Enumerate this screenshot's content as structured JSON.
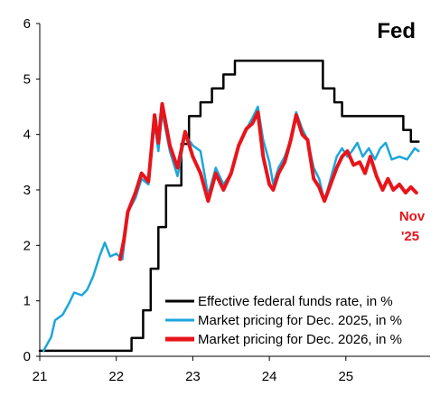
{
  "chart_data": {
    "type": "line",
    "title": "Fed",
    "xlabel": "",
    "ylabel": "",
    "xlim": [
      21.0,
      26.1
    ],
    "ylim": [
      0,
      6
    ],
    "x_ticks": [
      {
        "value": 21,
        "label": "21"
      },
      {
        "value": 22,
        "label": "22"
      },
      {
        "value": 23,
        "label": "23"
      },
      {
        "value": 24,
        "label": "24"
      },
      {
        "value": 25,
        "label": "25"
      }
    ],
    "y_ticks": [
      0,
      1,
      2,
      3,
      4,
      5,
      6
    ],
    "grid": false,
    "legend_position": "bottom-right",
    "annotation": {
      "text_line1": "Nov",
      "text_line2": "'25",
      "color": "#e8141b"
    },
    "series": [
      {
        "name": "Effective federal funds rate, in %",
        "color": "#000000",
        "step": true,
        "points": [
          [
            21.0,
            0.1
          ],
          [
            22.2,
            0.1
          ],
          [
            22.2,
            0.33
          ],
          [
            22.35,
            0.33
          ],
          [
            22.35,
            0.83
          ],
          [
            22.45,
            0.83
          ],
          [
            22.45,
            1.58
          ],
          [
            22.55,
            1.58
          ],
          [
            22.55,
            2.33
          ],
          [
            22.65,
            2.33
          ],
          [
            22.65,
            3.08
          ],
          [
            22.85,
            3.08
          ],
          [
            22.85,
            3.83
          ],
          [
            22.95,
            3.83
          ],
          [
            22.95,
            4.33
          ],
          [
            23.1,
            4.33
          ],
          [
            23.1,
            4.58
          ],
          [
            23.25,
            4.58
          ],
          [
            23.25,
            4.83
          ],
          [
            23.4,
            4.83
          ],
          [
            23.4,
            5.08
          ],
          [
            23.55,
            5.08
          ],
          [
            23.55,
            5.33
          ],
          [
            24.7,
            5.33
          ],
          [
            24.7,
            4.83
          ],
          [
            24.85,
            4.83
          ],
          [
            24.85,
            4.58
          ],
          [
            24.95,
            4.58
          ],
          [
            24.95,
            4.33
          ],
          [
            25.75,
            4.33
          ],
          [
            25.75,
            4.08
          ],
          [
            25.85,
            4.08
          ],
          [
            25.85,
            3.87
          ],
          [
            25.95,
            3.87
          ]
        ]
      },
      {
        "name": "Market pricing for Dec. 2025, in %",
        "color": "#1ca6dc",
        "points": [
          [
            21.05,
            0.1
          ],
          [
            21.15,
            0.35
          ],
          [
            21.2,
            0.65
          ],
          [
            21.3,
            0.75
          ],
          [
            21.38,
            0.95
          ],
          [
            21.45,
            1.15
          ],
          [
            21.55,
            1.1
          ],
          [
            21.62,
            1.2
          ],
          [
            21.7,
            1.45
          ],
          [
            21.78,
            1.8
          ],
          [
            21.85,
            2.05
          ],
          [
            21.92,
            1.8
          ],
          [
            22.0,
            1.85
          ],
          [
            22.08,
            1.75
          ],
          [
            22.15,
            2.6
          ],
          [
            22.25,
            2.85
          ],
          [
            22.33,
            3.2
          ],
          [
            22.42,
            3.1
          ],
          [
            22.5,
            4.2
          ],
          [
            22.55,
            3.7
          ],
          [
            22.6,
            4.4
          ],
          [
            22.7,
            3.7
          ],
          [
            22.8,
            3.25
          ],
          [
            22.9,
            4.0
          ],
          [
            23.0,
            3.8
          ],
          [
            23.1,
            3.7
          ],
          [
            23.2,
            2.9
          ],
          [
            23.3,
            3.4
          ],
          [
            23.4,
            3.1
          ],
          [
            23.5,
            3.3
          ],
          [
            23.6,
            3.8
          ],
          [
            23.7,
            4.1
          ],
          [
            23.78,
            4.3
          ],
          [
            23.85,
            4.5
          ],
          [
            23.92,
            3.9
          ],
          [
            24.0,
            3.5
          ],
          [
            24.05,
            3.1
          ],
          [
            24.12,
            3.4
          ],
          [
            24.2,
            3.6
          ],
          [
            24.28,
            3.9
          ],
          [
            24.35,
            4.4
          ],
          [
            24.43,
            4.1
          ],
          [
            24.5,
            3.9
          ],
          [
            24.58,
            3.4
          ],
          [
            24.65,
            3.2
          ],
          [
            24.72,
            2.8
          ],
          [
            24.8,
            3.2
          ],
          [
            24.88,
            3.6
          ],
          [
            24.95,
            3.75
          ],
          [
            25.02,
            3.6
          ],
          [
            25.08,
            3.7
          ],
          [
            25.15,
            3.85
          ],
          [
            25.22,
            3.6
          ],
          [
            25.3,
            3.75
          ],
          [
            25.38,
            3.55
          ],
          [
            25.45,
            3.75
          ],
          [
            25.52,
            3.85
          ],
          [
            25.6,
            3.55
          ],
          [
            25.7,
            3.6
          ],
          [
            25.8,
            3.55
          ],
          [
            25.9,
            3.75
          ],
          [
            25.95,
            3.7
          ]
        ]
      },
      {
        "name": "Market pricing for Dec. 2026, in %",
        "color": "#e8141b",
        "points": [
          [
            22.05,
            1.75
          ],
          [
            22.1,
            2.1
          ],
          [
            22.15,
            2.6
          ],
          [
            22.25,
            2.95
          ],
          [
            22.33,
            3.3
          ],
          [
            22.42,
            3.15
          ],
          [
            22.5,
            4.35
          ],
          [
            22.55,
            3.85
          ],
          [
            22.6,
            4.55
          ],
          [
            22.7,
            3.8
          ],
          [
            22.8,
            3.4
          ],
          [
            22.9,
            4.05
          ],
          [
            23.0,
            3.6
          ],
          [
            23.1,
            3.3
          ],
          [
            23.2,
            2.8
          ],
          [
            23.3,
            3.3
          ],
          [
            23.4,
            3.0
          ],
          [
            23.5,
            3.3
          ],
          [
            23.6,
            3.8
          ],
          [
            23.7,
            4.1
          ],
          [
            23.78,
            4.2
          ],
          [
            23.85,
            4.4
          ],
          [
            23.92,
            3.6
          ],
          [
            24.0,
            3.1
          ],
          [
            24.05,
            3.0
          ],
          [
            24.12,
            3.3
          ],
          [
            24.2,
            3.5
          ],
          [
            24.28,
            3.9
          ],
          [
            24.35,
            4.35
          ],
          [
            24.43,
            4.0
          ],
          [
            24.5,
            3.9
          ],
          [
            24.58,
            3.2
          ],
          [
            24.65,
            3.05
          ],
          [
            24.72,
            2.8
          ],
          [
            24.8,
            3.1
          ],
          [
            24.88,
            3.4
          ],
          [
            24.95,
            3.6
          ],
          [
            25.02,
            3.7
          ],
          [
            25.1,
            3.45
          ],
          [
            25.18,
            3.5
          ],
          [
            25.25,
            3.3
          ],
          [
            25.32,
            3.6
          ],
          [
            25.4,
            3.25
          ],
          [
            25.48,
            3.0
          ],
          [
            25.55,
            3.2
          ],
          [
            25.62,
            3.0
          ],
          [
            25.7,
            3.1
          ],
          [
            25.78,
            2.95
          ],
          [
            25.85,
            3.05
          ],
          [
            25.92,
            2.95
          ]
        ]
      }
    ]
  }
}
